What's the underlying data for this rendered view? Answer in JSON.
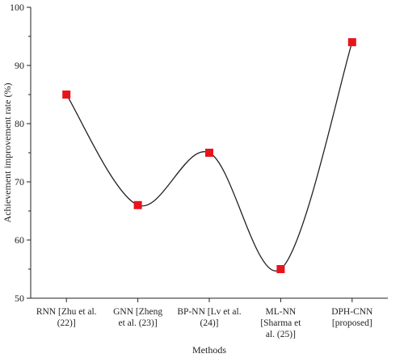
{
  "chart_data": {
    "type": "line",
    "title": "",
    "xlabel": "Methods",
    "ylabel": "Achievement improvement rate (%)",
    "ylim": [
      50,
      100
    ],
    "yticks": [
      50,
      60,
      70,
      80,
      90,
      100
    ],
    "categories": [
      [
        "RNN [Zhu et al.",
        "(22)]"
      ],
      [
        "GNN [Zheng",
        "et al. (23)]"
      ],
      [
        "BP-NN [Lv et al.",
        "(24)]"
      ],
      [
        "ML-NN",
        "[Sharma et",
        "al. (25)]"
      ],
      [
        "DPH-CNN",
        "[proposed]"
      ]
    ],
    "series": [
      {
        "values": [
          85,
          66,
          75,
          55,
          94
        ]
      }
    ],
    "marker": "square",
    "smooth": true,
    "grid": false,
    "legend": "none",
    "colors": {
      "line": "#222222",
      "marker": "#e8141c"
    }
  }
}
